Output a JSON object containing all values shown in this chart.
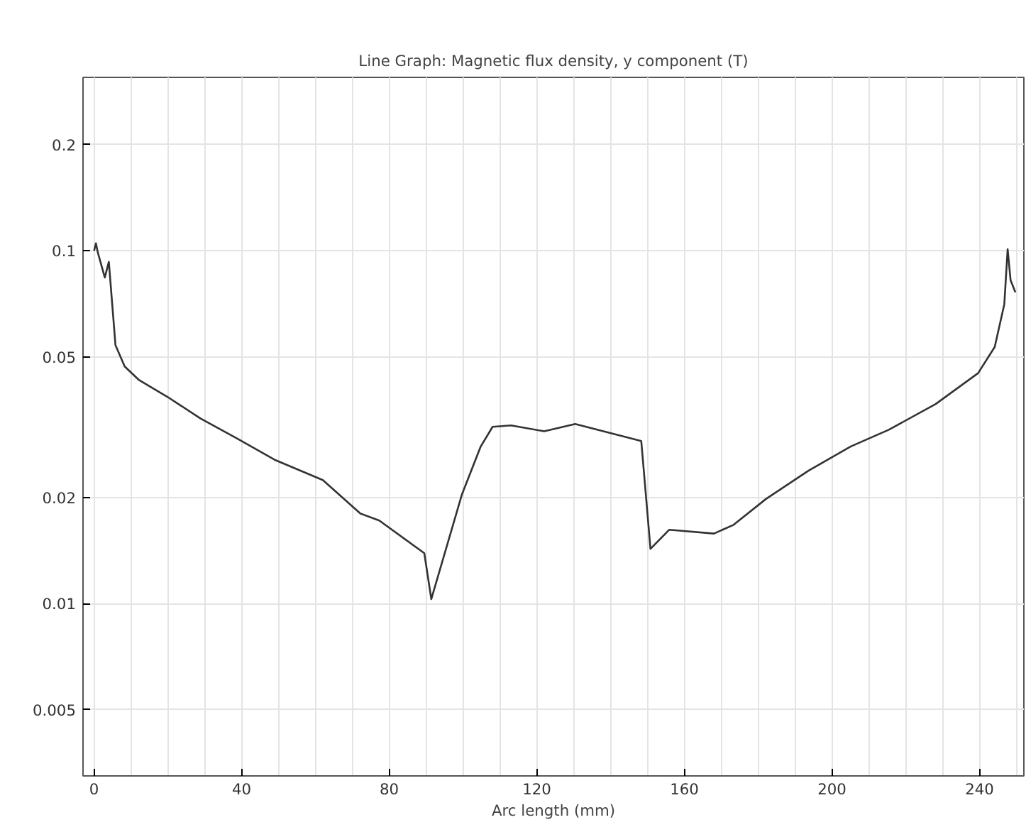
{
  "chart_data": {
    "type": "line",
    "title": "Line Graph: Magnetic flux density, y component (T)",
    "xlabel": "Arc length (mm)",
    "log": "y",
    "grid": true,
    "marker": "none",
    "line_style": "solid",
    "xlim": [
      -3,
      252
    ],
    "ylim": [
      0.00325,
      0.31
    ],
    "xticks": [
      0,
      {
        "value": 10,
        "label": null
      },
      {
        "value": 20,
        "label": null
      },
      {
        "value": 30,
        "label": null
      },
      40,
      {
        "value": 50,
        "label": null
      },
      {
        "value": 60,
        "label": null
      },
      {
        "value": 70,
        "label": null
      },
      80,
      {
        "value": 90,
        "label": null
      },
      {
        "value": 100,
        "label": null
      },
      {
        "value": 110,
        "label": null
      },
      120,
      {
        "value": 130,
        "label": null
      },
      {
        "value": 140,
        "label": null
      },
      {
        "value": 150,
        "label": null
      },
      160,
      {
        "value": 170,
        "label": null
      },
      {
        "value": 180,
        "label": null
      },
      {
        "value": 190,
        "label": null
      },
      200,
      {
        "value": 210,
        "label": null
      },
      {
        "value": 220,
        "label": null
      },
      {
        "value": 230,
        "label": null
      },
      240,
      {
        "value": 250,
        "label": null
      }
    ],
    "yticks": [
      0.005,
      0.01,
      0.02,
      0.05,
      0.1,
      0.2
    ],
    "x": [
      0,
      0.5,
      1,
      2.9,
      4,
      5.8,
      8.3,
      12.2,
      19.8,
      28.8,
      39,
      49.2,
      62,
      72.2,
      77.3,
      89.5,
      91.4,
      99.7,
      104.8,
      108,
      113,
      122,
      130.4,
      148.3,
      150.8,
      155.9,
      168,
      173.2,
      182.1,
      193.6,
      205.1,
      215.4,
      228.1,
      239.6,
      244.1,
      246.7,
      247.6,
      248.4,
      249.7
    ],
    "series": [
      {
        "color": "#333333",
        "values": [
          0.1,
          0.105,
          0.099,
          0.084,
          0.093,
          0.054,
          0.047,
          0.043,
          0.0386,
          0.0335,
          0.0293,
          0.0255,
          0.0224,
          0.018,
          0.0172,
          0.0139,
          0.0103,
          0.0204,
          0.0279,
          0.0317,
          0.032,
          0.0308,
          0.0323,
          0.0289,
          0.0143,
          0.0162,
          0.0158,
          0.0167,
          0.0198,
          0.0238,
          0.0279,
          0.0311,
          0.0368,
          0.045,
          0.0534,
          0.0706,
          0.101,
          0.0825,
          0.0763
        ]
      }
    ]
  }
}
